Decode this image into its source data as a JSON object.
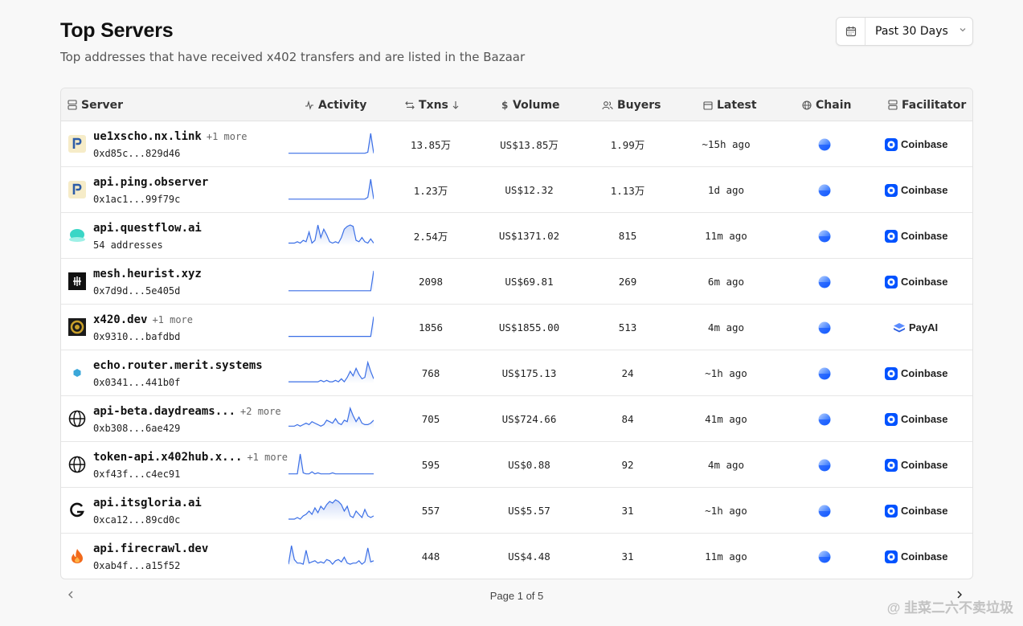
{
  "header": {
    "title": "Top Servers",
    "subtitle": "Top addresses that have received x402 transfers and are listed in the Bazaar"
  },
  "range": {
    "label": "Past 30 Days",
    "icon": "calendar-icon"
  },
  "columns": {
    "server": "Server",
    "activity": "Activity",
    "txns": "Txns",
    "volume": "Volume",
    "buyers": "Buyers",
    "latest": "Latest",
    "chain": "Chain",
    "facilitator": "Facilitator"
  },
  "rows": [
    {
      "name": "ue1xscho.nx.link",
      "more": "+1 more",
      "address": "0xd85c...829d46",
      "txns": "13.85万",
      "volume": "US$13.85万",
      "buyers": "1.99万",
      "latest": "~15h ago",
      "facilitator": "Coinbase",
      "logo": "p-logo",
      "spark": [
        1,
        1,
        1,
        1,
        1,
        1,
        1,
        1,
        1,
        1,
        1,
        1,
        1,
        1,
        1,
        1,
        1,
        1,
        1,
        1,
        1,
        1,
        1,
        1,
        1,
        1,
        1,
        2,
        20,
        1
      ]
    },
    {
      "name": "api.ping.observer",
      "more": "",
      "address": "0x1ac1...99f79c",
      "txns": "1.23万",
      "volume": "US$12.32",
      "buyers": "1.13万",
      "latest": "1d ago",
      "facilitator": "Coinbase",
      "logo": "p-logo",
      "spark": [
        1,
        1,
        1,
        1,
        1,
        1,
        1,
        1,
        1,
        1,
        1,
        1,
        1,
        1,
        1,
        1,
        1,
        1,
        1,
        1,
        1,
        1,
        1,
        1,
        1,
        1,
        1,
        3,
        22,
        1
      ]
    },
    {
      "name": "api.questflow.ai",
      "more": "",
      "address": "54 addresses",
      "txns": "2.54万",
      "volume": "US$1371.02",
      "buyers": "815",
      "latest": "11m ago",
      "facilitator": "Coinbase",
      "logo": "questflow-logo",
      "spark": [
        2,
        2,
        2,
        3,
        2,
        4,
        3,
        10,
        2,
        4,
        15,
        6,
        12,
        8,
        3,
        2,
        3,
        2,
        6,
        12,
        14,
        15,
        14,
        4,
        3,
        6,
        3,
        2,
        5,
        2
      ]
    },
    {
      "name": "mesh.heurist.xyz",
      "more": "",
      "address": "0x7d9d...5e405d",
      "txns": "2098",
      "volume": "US$69.81",
      "buyers": "269",
      "latest": "6m ago",
      "facilitator": "Coinbase",
      "logo": "heurist-logo",
      "spark": [
        1,
        1,
        1,
        1,
        1,
        1,
        1,
        1,
        1,
        1,
        1,
        1,
        1,
        1,
        1,
        1,
        1,
        1,
        1,
        1,
        1,
        1,
        1,
        1,
        1,
        1,
        1,
        1,
        1,
        22
      ]
    },
    {
      "name": "x420.dev",
      "more": "+1 more",
      "address": "0x9310...bafdbd",
      "txns": "1856",
      "volume": "US$1855.00",
      "buyers": "513",
      "latest": "4m ago",
      "facilitator": "PayAI",
      "logo": "x420-logo",
      "spark": [
        1,
        1,
        1,
        1,
        1,
        1,
        1,
        1,
        1,
        1,
        1,
        1,
        1,
        1,
        1,
        1,
        1,
        1,
        1,
        1,
        1,
        1,
        1,
        1,
        1,
        1,
        1,
        1,
        1,
        18
      ]
    },
    {
      "name": "echo.router.merit.systems",
      "more": "",
      "address": "0x0341...441b0f",
      "txns": "768",
      "volume": "US$175.13",
      "buyers": "24",
      "latest": "~1h ago",
      "facilitator": "Coinbase",
      "logo": "echo-logo",
      "spark": [
        1,
        1,
        1,
        1,
        1,
        1,
        1,
        1,
        1,
        1,
        1,
        2,
        1,
        2,
        1,
        1,
        2,
        1,
        3,
        1,
        4,
        8,
        5,
        10,
        6,
        3,
        4,
        14,
        8,
        3
      ]
    },
    {
      "name": "api-beta.daydreams...",
      "more": "+2 more",
      "address": "0xb308...6ae429",
      "txns": "705",
      "volume": "US$724.66",
      "buyers": "84",
      "latest": "41m ago",
      "facilitator": "Coinbase",
      "logo": "globe-logo",
      "spark": [
        2,
        2,
        2,
        3,
        2,
        3,
        4,
        3,
        5,
        4,
        3,
        2,
        3,
        6,
        5,
        4,
        7,
        4,
        3,
        6,
        5,
        14,
        9,
        5,
        8,
        4,
        3,
        3,
        4,
        6
      ]
    },
    {
      "name": "token-api.x402hub.x...",
      "more": "+1 more",
      "address": "0xf43f...c4ec91",
      "txns": "595",
      "volume": "US$0.88",
      "buyers": "92",
      "latest": "4m ago",
      "facilitator": "Coinbase",
      "logo": "globe-logo",
      "spark": [
        1,
        1,
        1,
        1,
        20,
        2,
        1,
        1,
        3,
        1,
        2,
        1,
        1,
        1,
        1,
        2,
        1,
        1,
        1,
        1,
        1,
        1,
        1,
        1,
        1,
        1,
        1,
        1,
        1,
        1
      ]
    },
    {
      "name": "api.itsgloria.ai",
      "more": "",
      "address": "0xca12...89cd0c",
      "txns": "557",
      "volume": "US$5.57",
      "buyers": "31",
      "latest": "~1h ago",
      "facilitator": "Coinbase",
      "logo": "gloria-logo",
      "spark": [
        1,
        1,
        1,
        2,
        1,
        3,
        4,
        6,
        4,
        8,
        5,
        9,
        7,
        10,
        12,
        11,
        13,
        12,
        10,
        6,
        9,
        3,
        2,
        6,
        4,
        2,
        7,
        3,
        2,
        3
      ]
    },
    {
      "name": "api.firecrawl.dev",
      "more": "",
      "address": "0xab4f...a15f52",
      "txns": "448",
      "volume": "US$4.48",
      "buyers": "31",
      "latest": "11m ago",
      "facilitator": "Coinbase",
      "logo": "fire-logo",
      "spark": [
        2,
        18,
        6,
        3,
        3,
        2,
        14,
        3,
        4,
        5,
        3,
        4,
        3,
        6,
        5,
        2,
        5,
        6,
        4,
        8,
        3,
        2,
        3,
        3,
        5,
        2,
        4,
        16,
        4,
        5
      ]
    }
  ],
  "pagination": {
    "label": "Page 1 of 5"
  },
  "watermark": "@ 韭菜二六不卖垃圾",
  "colors": {
    "accent": "#3b6fe6",
    "coinbase": "#0052ff"
  }
}
